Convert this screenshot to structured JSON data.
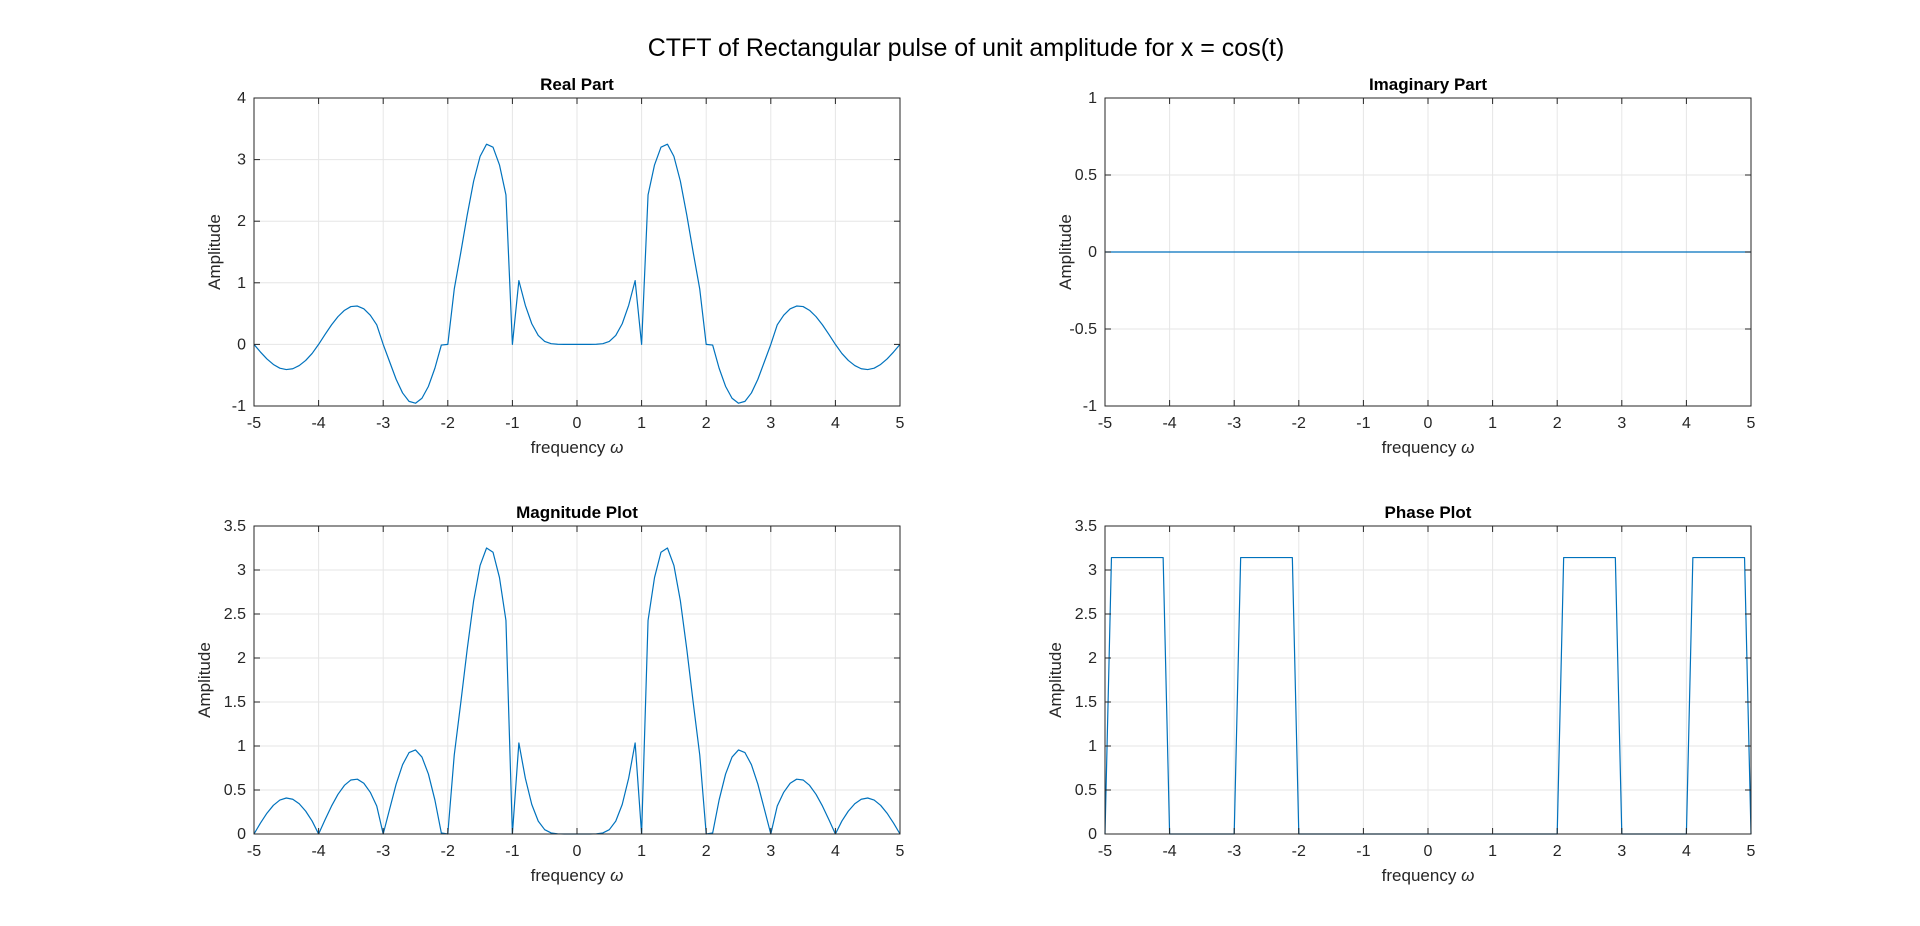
{
  "figure": {
    "title": "CTFT of Rectangular pulse of unit amplitude for x = cos(t)",
    "line_color": "#0072BD",
    "grid": true
  },
  "chart_data": [
    {
      "type": "line",
      "title": "Real Part",
      "xlabel": "frequency",
      "xlabel_symbol": "ω",
      "ylabel": "Amplitude",
      "xlim": [
        -5,
        5
      ],
      "ylim": [
        -1,
        4
      ],
      "xticks": [
        -5,
        -4,
        -3,
        -2,
        -1,
        0,
        1,
        2,
        3,
        4,
        5
      ],
      "yticks": [
        -1,
        0,
        1,
        2,
        3,
        4
      ],
      "x": [
        -5,
        -4.9,
        -4.8,
        -4.7,
        -4.6,
        -4.5,
        -4.4,
        -4.3,
        -4.2,
        -4.1,
        -4,
        -3.9,
        -3.8,
        -3.7,
        -3.6,
        -3.5,
        -3.4,
        -3.3,
        -3.2,
        -3.1,
        -3,
        -2.9,
        -2.8,
        -2.7,
        -2.6,
        -2.5,
        -2.4,
        -2.3,
        -2.2,
        -2.1,
        -2,
        -1.9,
        -1.8,
        -1.7,
        -1.6,
        -1.5,
        -1.4,
        -1.3,
        -1.2,
        -1.1,
        -1,
        -0.9,
        -0.8,
        -0.7,
        -0.6,
        -0.5,
        -0.4,
        -0.3,
        -0.2,
        -0.1,
        0,
        0.1,
        0.2,
        0.3,
        0.4,
        0.5,
        0.6,
        0.7,
        0.8,
        0.9,
        1,
        1.1,
        1.2,
        1.3,
        1.4,
        1.5,
        1.6,
        1.7,
        1.8,
        1.9,
        2,
        2.1,
        2.2,
        2.3,
        2.4,
        2.5,
        2.6,
        2.7,
        2.8,
        2.9,
        3,
        3.1,
        3.2,
        3.3,
        3.4,
        3.5,
        3.6,
        3.7,
        3.8,
        3.9,
        4,
        4.1,
        4.2,
        4.3,
        4.4,
        4.5,
        4.6,
        4.7,
        4.8,
        4.9,
        5
      ],
      "series": [
        {
          "values": [
            0.0,
            -0.124,
            -0.236,
            -0.326,
            -0.386,
            -0.409,
            -0.395,
            -0.344,
            -0.26,
            -0.147,
            0.0,
            0.162,
            0.317,
            0.451,
            0.553,
            0.614,
            0.623,
            0.577,
            0.474,
            0.318,
            0.0,
            -0.284,
            -0.566,
            -0.788,
            -0.925,
            -0.955,
            -0.874,
            -0.681,
            -0.387,
            -0.011,
            0.0,
            0.899,
            1.486,
            2.097,
            2.651,
            3.052,
            3.25,
            3.202,
            2.914,
            2.427,
            0.0,
            1.035,
            0.635,
            0.335,
            0.146,
            0.049,
            0.012,
            0.002,
            0.0,
            0.0,
            0.0,
            0.0,
            0.0,
            0.002,
            0.012,
            0.049,
            0.146,
            0.335,
            0.635,
            1.035,
            0.0,
            2.427,
            2.914,
            3.202,
            3.25,
            3.052,
            2.651,
            2.097,
            1.486,
            0.899,
            0.0,
            -0.011,
            -0.387,
            -0.681,
            -0.874,
            -0.955,
            -0.925,
            -0.788,
            -0.566,
            -0.284,
            0.0,
            0.318,
            0.474,
            0.577,
            0.623,
            0.614,
            0.553,
            0.451,
            0.317,
            0.162,
            0.0,
            -0.147,
            -0.26,
            -0.344,
            -0.395,
            -0.409,
            -0.386,
            -0.326,
            -0.236,
            -0.124,
            0.0
          ]
        }
      ]
    },
    {
      "type": "line",
      "title": "Imaginary Part",
      "xlabel": "frequency",
      "xlabel_symbol": "ω",
      "ylabel": "Amplitude",
      "xlim": [
        -5,
        5
      ],
      "ylim": [
        -1,
        1
      ],
      "xticks": [
        -5,
        -4,
        -3,
        -2,
        -1,
        0,
        1,
        2,
        3,
        4,
        5
      ],
      "yticks": [
        -1,
        -0.5,
        0,
        0.5,
        1
      ],
      "x": [
        -5,
        5
      ],
      "series": [
        {
          "values": [
            0,
            0
          ]
        }
      ]
    },
    {
      "type": "line",
      "title": "Magnitude Plot",
      "xlabel": "frequency",
      "xlabel_symbol": "ω",
      "ylabel": "Amplitude",
      "xlim": [
        -5,
        5
      ],
      "ylim": [
        0,
        3.5
      ],
      "xticks": [
        -5,
        -4,
        -3,
        -2,
        -1,
        0,
        1,
        2,
        3,
        4,
        5
      ],
      "yticks": [
        0,
        0.5,
        1,
        1.5,
        2,
        2.5,
        3,
        3.5
      ],
      "x": [
        -5,
        -4.9,
        -4.8,
        -4.7,
        -4.6,
        -4.5,
        -4.4,
        -4.3,
        -4.2,
        -4.1,
        -4,
        -3.9,
        -3.8,
        -3.7,
        -3.6,
        -3.5,
        -3.4,
        -3.3,
        -3.2,
        -3.1,
        -3,
        -2.9,
        -2.8,
        -2.7,
        -2.6,
        -2.5,
        -2.4,
        -2.3,
        -2.2,
        -2.1,
        -2,
        -1.9,
        -1.8,
        -1.7,
        -1.6,
        -1.5,
        -1.4,
        -1.3,
        -1.2,
        -1.1,
        -1,
        -0.9,
        -0.8,
        -0.7,
        -0.6,
        -0.5,
        -0.4,
        -0.3,
        -0.2,
        -0.1,
        0,
        0.1,
        0.2,
        0.3,
        0.4,
        0.5,
        0.6,
        0.7,
        0.8,
        0.9,
        1,
        1.1,
        1.2,
        1.3,
        1.4,
        1.5,
        1.6,
        1.7,
        1.8,
        1.9,
        2,
        2.1,
        2.2,
        2.3,
        2.4,
        2.5,
        2.6,
        2.7,
        2.8,
        2.9,
        3,
        3.1,
        3.2,
        3.3,
        3.4,
        3.5,
        3.6,
        3.7,
        3.8,
        3.9,
        4,
        4.1,
        4.2,
        4.3,
        4.4,
        4.5,
        4.6,
        4.7,
        4.8,
        4.9,
        5
      ],
      "series": [
        {
          "values": [
            0.0,
            0.124,
            0.236,
            0.326,
            0.386,
            0.409,
            0.395,
            0.344,
            0.26,
            0.147,
            0.0,
            0.162,
            0.317,
            0.451,
            0.553,
            0.614,
            0.623,
            0.577,
            0.474,
            0.318,
            0.0,
            0.284,
            0.566,
            0.788,
            0.925,
            0.955,
            0.874,
            0.681,
            0.387,
            0.011,
            0.0,
            0.899,
            1.486,
            2.097,
            2.651,
            3.052,
            3.25,
            3.202,
            2.914,
            2.427,
            0.0,
            1.035,
            0.635,
            0.335,
            0.146,
            0.049,
            0.012,
            0.002,
            0.0,
            0.0,
            0.0,
            0.0,
            0.0,
            0.002,
            0.012,
            0.049,
            0.146,
            0.335,
            0.635,
            1.035,
            0.0,
            2.427,
            2.914,
            3.202,
            3.25,
            3.052,
            2.651,
            2.097,
            1.486,
            0.899,
            0.0,
            0.011,
            0.387,
            0.681,
            0.874,
            0.955,
            0.925,
            0.788,
            0.566,
            0.284,
            0.0,
            0.318,
            0.474,
            0.577,
            0.623,
            0.614,
            0.553,
            0.451,
            0.317,
            0.162,
            0.0,
            0.147,
            0.26,
            0.344,
            0.395,
            0.409,
            0.386,
            0.326,
            0.236,
            0.124,
            0.0
          ]
        }
      ]
    },
    {
      "type": "line",
      "title": "Phase Plot",
      "xlabel": "frequency",
      "xlabel_symbol": "ω",
      "ylabel": "Amplitude",
      "xlim": [
        -5,
        5
      ],
      "ylim": [
        0,
        3.5
      ],
      "xticks": [
        -5,
        -4,
        -3,
        -2,
        -1,
        0,
        1,
        2,
        3,
        4,
        5
      ],
      "yticks": [
        0,
        0.5,
        1,
        1.5,
        2,
        2.5,
        3,
        3.5
      ],
      "x": [
        -5.0,
        -4.9,
        -4.1,
        -4.0,
        -3.0,
        -2.9,
        -2.1,
        -2.0,
        2.0,
        2.1,
        2.9,
        3.0,
        4.0,
        4.1,
        4.9,
        5.0
      ],
      "series": [
        {
          "values": [
            0,
            3.1416,
            3.1416,
            0,
            0,
            3.1416,
            3.1416,
            0,
            0,
            3.1416,
            3.1416,
            0,
            0,
            3.1416,
            3.1416,
            0
          ]
        }
      ]
    }
  ]
}
